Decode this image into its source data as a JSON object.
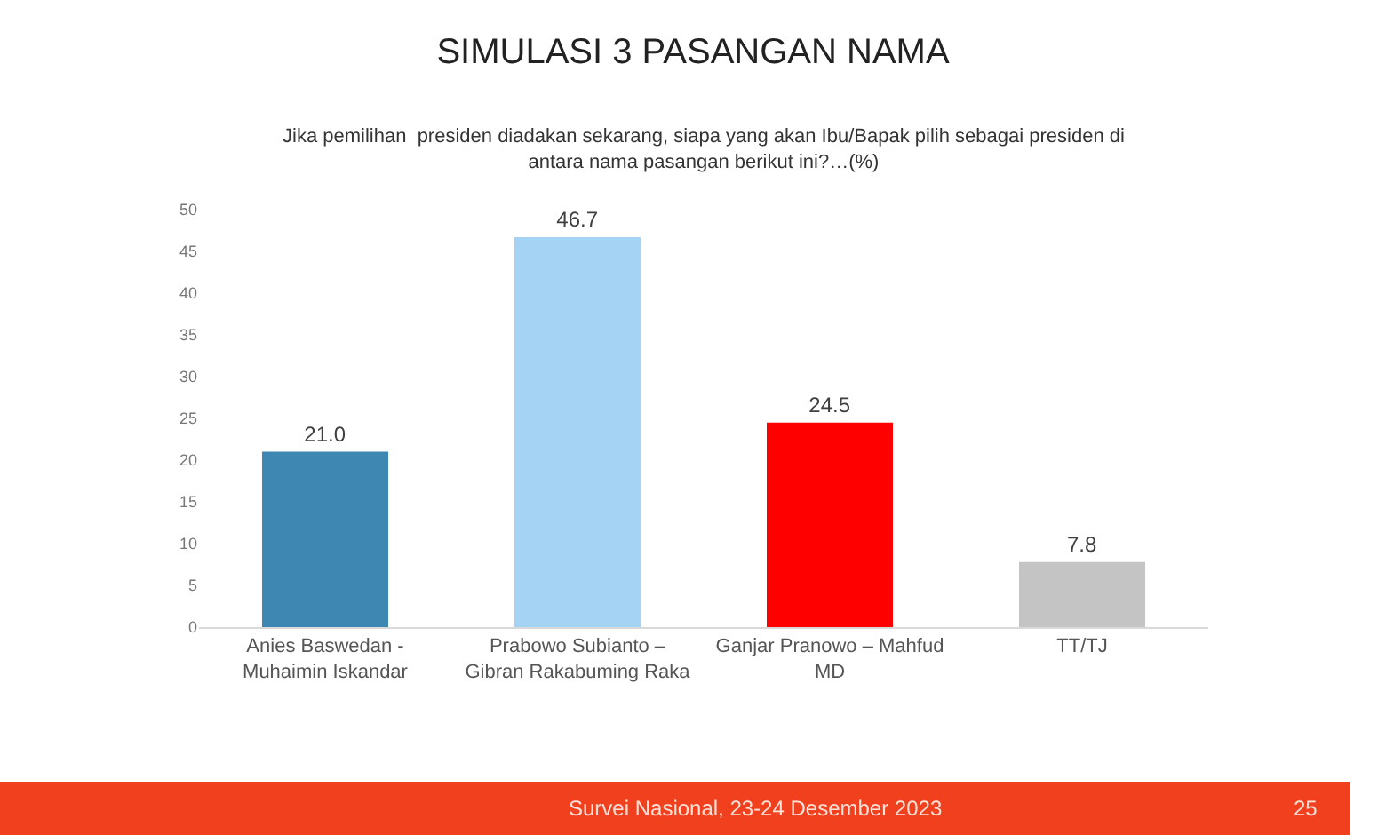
{
  "chart_data": {
    "type": "bar",
    "title": "SIMULASI 3 PASANGAN NAMA",
    "subtitle": "Jika pemilihan  presiden diadakan sekarang, siapa yang akan Ibu/Bapak pilih sebagai presiden di antara nama pasangan berikut ini?…(%)",
    "categories": [
      "Anies Baswedan - Muhaimin Iskandar",
      "Prabowo Subianto – Gibran Rakabuming Raka",
      "Ganjar Pranowo – Mahfud MD",
      "TT/TJ"
    ],
    "values": [
      21.0,
      46.7,
      24.5,
      7.8
    ],
    "colors": [
      "#3f87b3",
      "#a5d3f3",
      "#ff0000",
      "#c4c4c4"
    ],
    "ylim": [
      0,
      50
    ],
    "yticks": [
      0,
      5,
      10,
      15,
      20,
      25,
      30,
      35,
      40,
      45,
      50
    ],
    "value_labels": [
      "21.0",
      "46.7",
      "24.5",
      "7.8"
    ],
    "grid": false,
    "annotations": [
      "Survei Nasional, 23-24 Desember 2023",
      "25"
    ]
  }
}
